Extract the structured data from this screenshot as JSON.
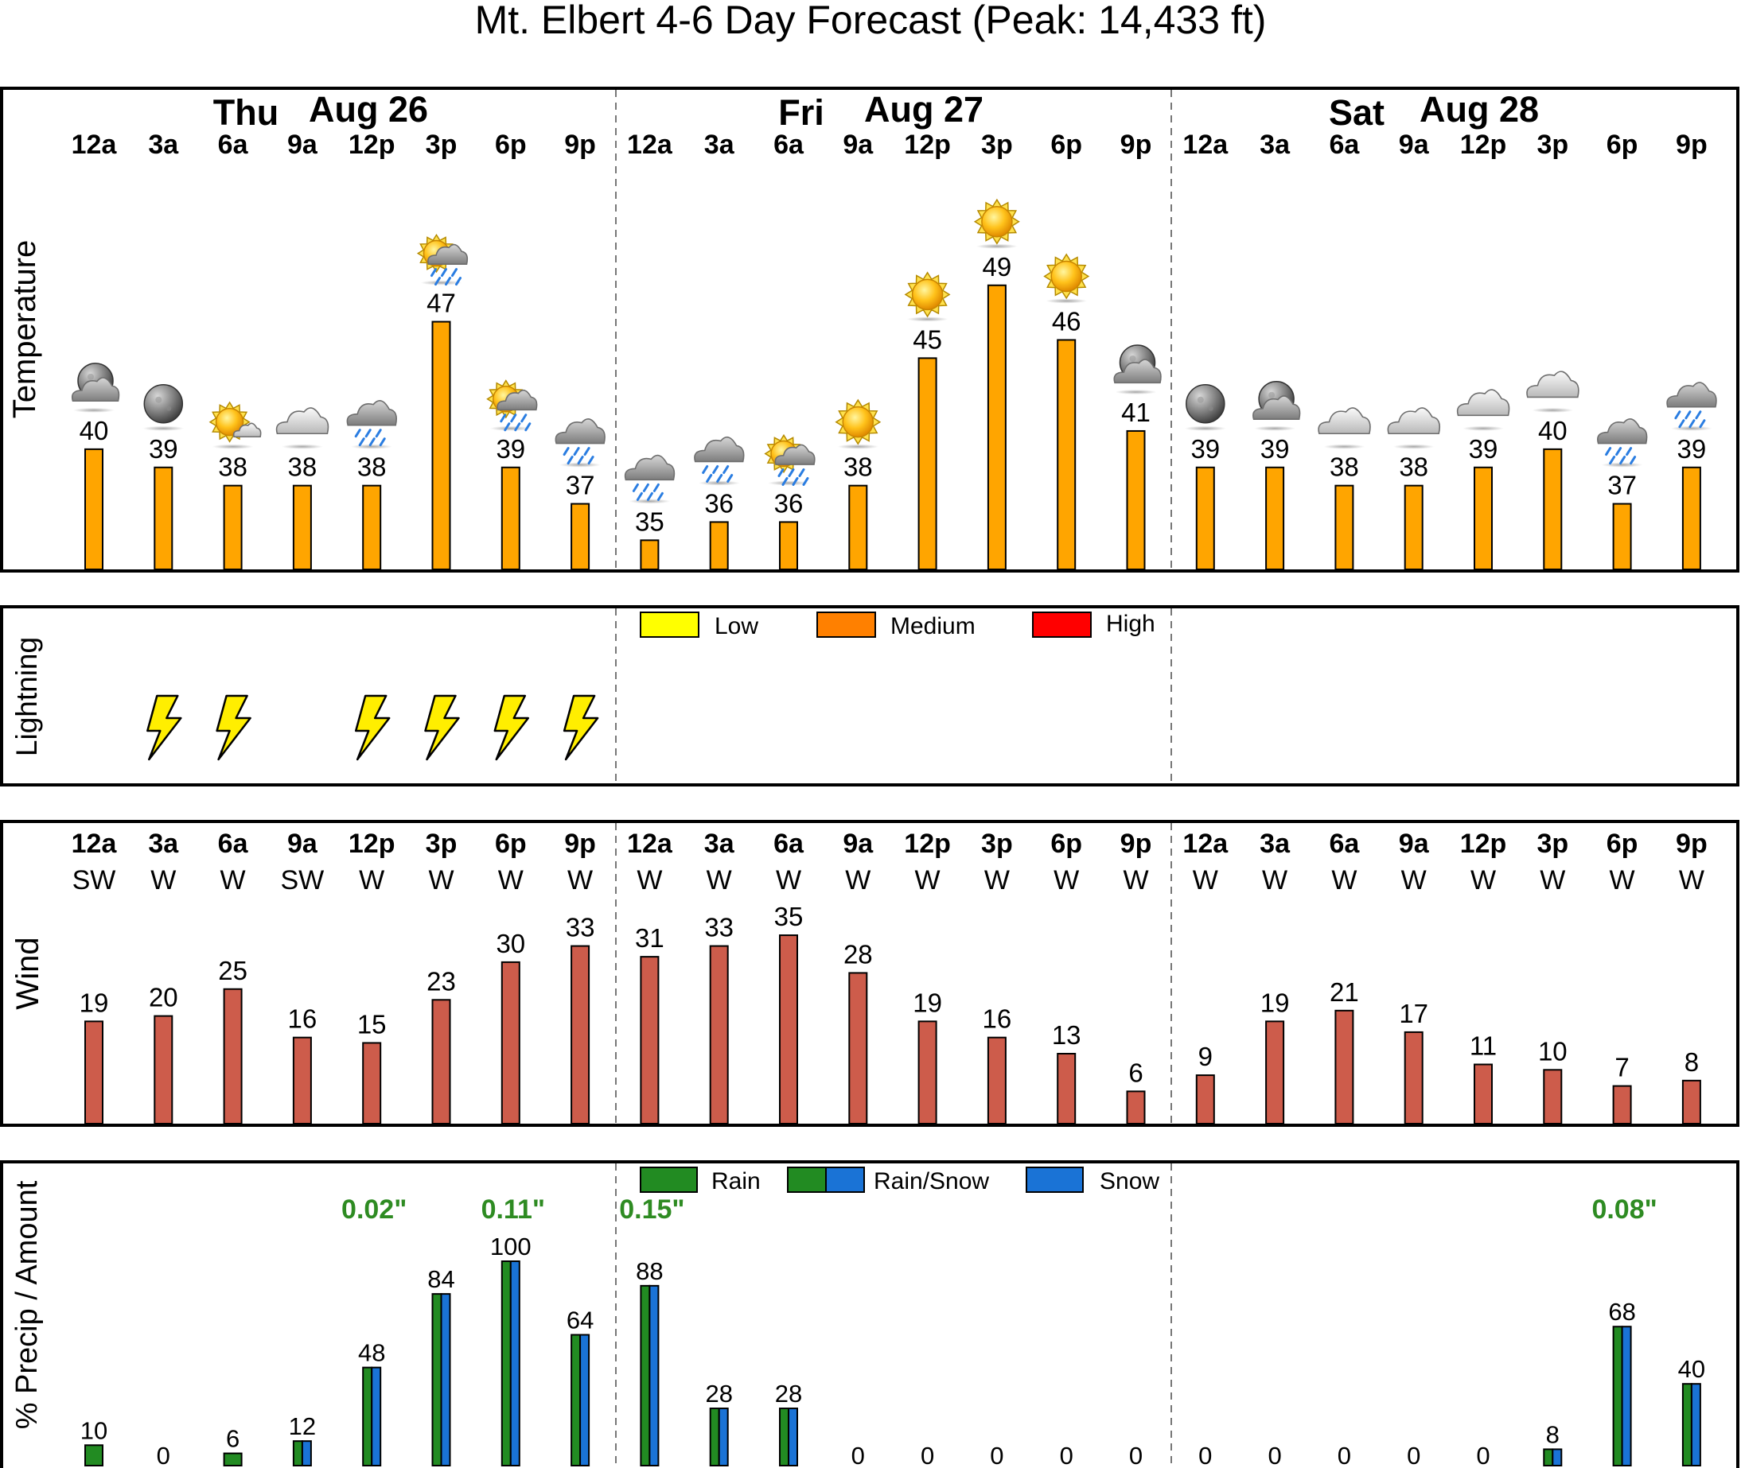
{
  "title": "Mt. Elbert 4-6 Day Forecast (Peak: 14,433 ft)",
  "days": [
    {
      "name": "Thu",
      "date": "Aug 26"
    },
    {
      "name": "Fri",
      "date": "Aug 27"
    },
    {
      "name": "Sat",
      "date": "Aug 28"
    }
  ],
  "hours": [
    "12a",
    "3a",
    "6a",
    "9a",
    "12p",
    "3p",
    "6p",
    "9p",
    "12a",
    "3a",
    "6a",
    "9a",
    "12p",
    "3p",
    "6p",
    "9p",
    "12a",
    "3a",
    "6a",
    "9a",
    "12p",
    "3p",
    "6p",
    "9p"
  ],
  "panels": {
    "temperature": "Temperature",
    "lightning": "Lightning",
    "wind": "Wind",
    "precip": "% Precip / Amount"
  },
  "lightning_legend": [
    {
      "label": "Low",
      "color": "#ffff00"
    },
    {
      "label": "Medium",
      "color": "#ff8000"
    },
    {
      "label": "High",
      "color": "#ff0000"
    }
  ],
  "precip_legend": [
    {
      "label": "Rain",
      "kind": "rain"
    },
    {
      "label": "Rain/Snow",
      "kind": "mix"
    },
    {
      "label": "Snow",
      "kind": "snow"
    }
  ],
  "colors": {
    "temp_bar": "#ffa500",
    "wind_bar": "#cd5c4b",
    "rain": "#228b22",
    "snow": "#1a73d6",
    "amount_text": "#2e8b22",
    "bolt": "#ffee00"
  },
  "chart_data": [
    {
      "type": "bar",
      "name": "temperature",
      "title": "Temperature",
      "categories": [
        "12a",
        "3a",
        "6a",
        "9a",
        "12p",
        "3p",
        "6p",
        "9p",
        "12a",
        "3a",
        "6a",
        "9a",
        "12p",
        "3p",
        "6p",
        "9p",
        "12a",
        "3a",
        "6a",
        "9a",
        "12p",
        "3p",
        "6p",
        "9p"
      ],
      "values": [
        40,
        39,
        38,
        38,
        38,
        47,
        39,
        37,
        35,
        36,
        36,
        38,
        45,
        49,
        46,
        41,
        39,
        39,
        38,
        38,
        39,
        40,
        37,
        39
      ],
      "icons": [
        "night-cloudy-icon",
        "moon-icon",
        "sun-cloud-icon",
        "cloud-icon",
        "rain-cloud-icon",
        "sun-rain-icon",
        "sun-rain-icon",
        "rain-cloud-icon",
        "rain-cloud-icon",
        "rain-cloud-icon",
        "sun-rain-icon",
        "sun-icon",
        "sun-icon",
        "sun-icon",
        "sun-icon",
        "night-cloudy-icon",
        "moon-icon",
        "night-cloudy-icon",
        "cloud-icon",
        "cloud-icon",
        "cloud-icon",
        "cloud-icon",
        "rain-cloud-icon",
        "rain-cloud-icon"
      ]
    },
    {
      "type": "bar",
      "name": "lightning",
      "title": "Lightning",
      "categories": [
        "12a",
        "3a",
        "6a",
        "9a",
        "12p",
        "3p",
        "6p",
        "9p",
        "12a",
        "3a",
        "6a",
        "9a",
        "12p",
        "3p",
        "6p",
        "9p",
        "12a",
        "3a",
        "6a",
        "9a",
        "12p",
        "3p",
        "6p",
        "9p"
      ],
      "risk": [
        "none",
        "low",
        "low",
        "none",
        "low",
        "low",
        "low",
        "low",
        "none",
        "none",
        "none",
        "none",
        "none",
        "none",
        "none",
        "none",
        "none",
        "none",
        "none",
        "none",
        "none",
        "none",
        "none",
        "none"
      ]
    },
    {
      "type": "bar",
      "name": "wind",
      "title": "Wind",
      "categories": [
        "12a",
        "3a",
        "6a",
        "9a",
        "12p",
        "3p",
        "6p",
        "9p",
        "12a",
        "3a",
        "6a",
        "9a",
        "12p",
        "3p",
        "6p",
        "9p",
        "12a",
        "3a",
        "6a",
        "9a",
        "12p",
        "3p",
        "6p",
        "9p"
      ],
      "directions": [
        "SW",
        "W",
        "W",
        "SW",
        "W",
        "W",
        "W",
        "W",
        "W",
        "W",
        "W",
        "W",
        "W",
        "W",
        "W",
        "W",
        "W",
        "W",
        "W",
        "W",
        "W",
        "W",
        "W",
        "W"
      ],
      "values": [
        19,
        20,
        25,
        16,
        15,
        23,
        30,
        33,
        31,
        33,
        35,
        28,
        19,
        16,
        13,
        6,
        9,
        19,
        21,
        17,
        11,
        10,
        7,
        8
      ]
    },
    {
      "type": "bar",
      "name": "precip",
      "title": "% Precip / Amount",
      "categories": [
        "12a",
        "3a",
        "6a",
        "9a",
        "12p",
        "3p",
        "6p",
        "9p",
        "12a",
        "3a",
        "6a",
        "9a",
        "12p",
        "3p",
        "6p",
        "9p",
        "12a",
        "3a",
        "6a",
        "9a",
        "12p",
        "3p",
        "6p",
        "9p"
      ],
      "values": [
        10,
        0,
        6,
        12,
        48,
        84,
        100,
        64,
        88,
        28,
        28,
        0,
        0,
        0,
        0,
        0,
        0,
        0,
        0,
        0,
        0,
        8,
        68,
        40
      ],
      "kinds": [
        "rain",
        "none",
        "rain",
        "mix",
        "mix",
        "mix",
        "mix",
        "mix",
        "mix",
        "mix",
        "mix",
        "none",
        "none",
        "none",
        "none",
        "none",
        "none",
        "none",
        "none",
        "none",
        "none",
        "mix",
        "mix",
        "mix"
      ],
      "amounts": [
        {
          "label": "0.02\"",
          "index": 4
        },
        {
          "label": "0.11\"",
          "index": 6
        },
        {
          "label": "0.15\"",
          "index": 8
        },
        {
          "label": "0.08\"",
          "index": 22
        }
      ],
      "ylim": [
        0,
        100
      ]
    }
  ]
}
